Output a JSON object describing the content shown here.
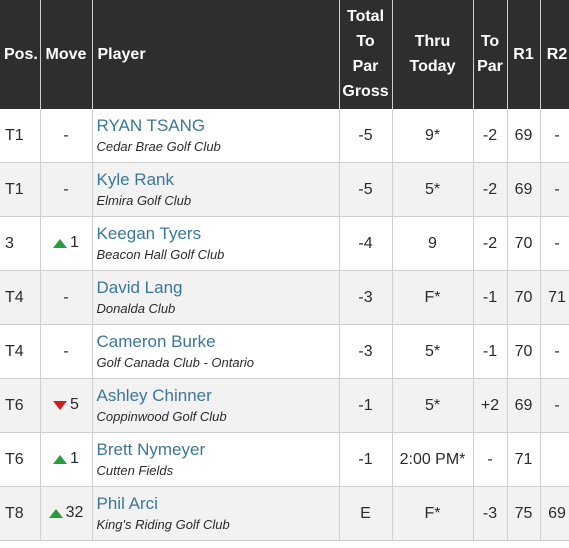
{
  "headers": {
    "pos": "Pos.",
    "move": "Move",
    "player": "Player",
    "total_line1": "Total",
    "total_line2": "To",
    "total_line3": "Par",
    "total_line4": "Gross",
    "thru_line1": "Thru",
    "thru_line2": "Today",
    "topar_line1": "To",
    "topar_line2": "Par",
    "r1": "R1",
    "r2": "R2"
  },
  "colors": {
    "header_bg": "#2e2e2e",
    "player_link": "#3a7797",
    "move_up": "#2a9a3a",
    "move_down": "#d01f1f"
  },
  "rows": [
    {
      "pos": "T1",
      "move_dir": "none",
      "move": "-",
      "name": "RYAN TSANG",
      "club": "Cedar Brae Golf Club",
      "total": "-5",
      "thru": "9*",
      "topar": "-2",
      "r1": "69",
      "r2": "-"
    },
    {
      "pos": "T1",
      "move_dir": "none",
      "move": "-",
      "name": "Kyle Rank",
      "club": "Elmira Golf Club",
      "total": "-5",
      "thru": "5*",
      "topar": "-2",
      "r1": "69",
      "r2": "-"
    },
    {
      "pos": "3",
      "move_dir": "up",
      "move": "1",
      "name": "Keegan Tyers",
      "club": "Beacon Hall Golf Club",
      "total": "-4",
      "thru": "9",
      "topar": "-2",
      "r1": "70",
      "r2": "-"
    },
    {
      "pos": "T4",
      "move_dir": "none",
      "move": "-",
      "name": "David Lang",
      "club": "Donalda Club",
      "total": "-3",
      "thru": "F*",
      "topar": "-1",
      "r1": "70",
      "r2": "71"
    },
    {
      "pos": "T4",
      "move_dir": "none",
      "move": "-",
      "name": "Cameron Burke",
      "club": "Golf Canada Club - Ontario",
      "total": "-3",
      "thru": "5*",
      "topar": "-1",
      "r1": "70",
      "r2": "-"
    },
    {
      "pos": "T6",
      "move_dir": "down",
      "move": "5",
      "name": "Ashley Chinner",
      "club": "Coppinwood Golf Club",
      "total": "-1",
      "thru": "5*",
      "topar": "+2",
      "r1": "69",
      "r2": "-"
    },
    {
      "pos": "T6",
      "move_dir": "up",
      "move": "1",
      "name": "Brett Nymeyer",
      "club": "Cutten Fields",
      "total": "-1",
      "thru": "2:00 PM*",
      "topar": "-",
      "r1": "71",
      "r2": ""
    },
    {
      "pos": "T8",
      "move_dir": "up",
      "move": "32",
      "name": "Phil Arci",
      "club": "King's Riding Golf Club",
      "total": "E",
      "thru": "F*",
      "topar": "-3",
      "r1": "75",
      "r2": "69"
    }
  ]
}
